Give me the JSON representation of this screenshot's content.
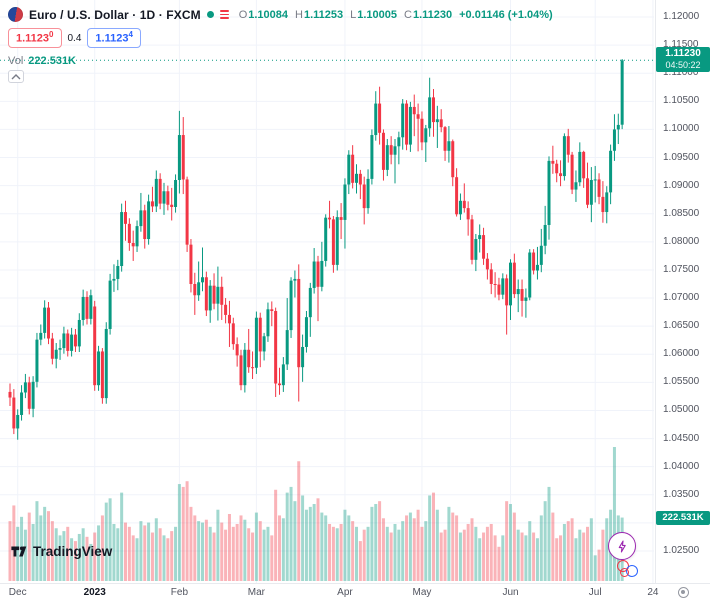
{
  "legend": {
    "title": "Euro / U.S. Dollar · 1D · FXCM",
    "ohlc": [
      {
        "k": "O",
        "v": "1.10084"
      },
      {
        "k": "H",
        "v": "1.11253"
      },
      {
        "k": "L",
        "v": "1.10005"
      },
      {
        "k": "C",
        "v": "1.11230"
      }
    ],
    "change": "+0.01146 (+1.04%)",
    "sell": {
      "price": "1.1123",
      "sup": "0"
    },
    "spread": "0.4",
    "buy": {
      "price": "1.1123",
      "sup": "4"
    },
    "vol_label": "Vol",
    "vol_value": "222.531K"
  },
  "price_axis": {
    "ticks": [
      "1.12000",
      "1.11500",
      "1.11000",
      "1.10500",
      "1.10000",
      "1.09500",
      "1.09000",
      "1.08500",
      "1.08000",
      "1.07500",
      "1.07000",
      "1.06500",
      "1.06000",
      "1.05500",
      "1.05000",
      "1.04500",
      "1.04000",
      "1.03500",
      "1.03000",
      "1.02500"
    ],
    "last_price": "1.11230",
    "countdown": "04:50:22",
    "volume_label": "222.531K"
  },
  "time_axis": {
    "labels": [
      {
        "text": "Dec",
        "index": 2
      },
      {
        "text": "2023",
        "index": 22,
        "major": true
      },
      {
        "text": "Feb",
        "index": 44
      },
      {
        "text": "Mar",
        "index": 64
      },
      {
        "text": "Apr",
        "index": 87
      },
      {
        "text": "May",
        "index": 107
      },
      {
        "text": "Jun",
        "index": 130
      },
      {
        "text": "Jul",
        "index": 152
      },
      {
        "text": "24",
        "index": 167
      }
    ]
  },
  "branding": {
    "logo_text": "TradingView"
  },
  "colors": {
    "up": "#089981",
    "down": "#F23645",
    "vol_up": "rgba(8,153,129,0.38)",
    "vol_down": "rgba(242,54,69,0.38)",
    "grid": "#F0F3FA",
    "buy": "#2962FF",
    "sell": "#F23645",
    "axis_text": "#50535E",
    "muted": "#787B86"
  },
  "chart_data": {
    "type": "candlestick+volume",
    "title": "Euro / U.S. Dollar, 1D, FXCM",
    "symbol": "EURUSD",
    "interval": "1D",
    "x_start": "2022-12-01",
    "x_end": "2023-07-12",
    "ylim": [
      1.025,
      1.12
    ],
    "price_tick_step": 0.005,
    "grid": true,
    "volume_unit": "K",
    "last_bar": {
      "open": 1.10084,
      "high": 1.11253,
      "low": 1.10005,
      "close": 1.1123,
      "volume_k": 222.531
    },
    "candles_format": [
      "open",
      "high",
      "low",
      "close",
      "volume_k"
    ],
    "candles": [
      [
        1.0533,
        1.0548,
        1.0508,
        1.0523,
        210
      ],
      [
        1.0523,
        1.0538,
        1.0458,
        1.0468,
        265
      ],
      [
        1.0468,
        1.0502,
        1.0448,
        1.0492,
        190
      ],
      [
        1.0492,
        1.0545,
        1.0482,
        1.0532,
        225
      ],
      [
        1.0532,
        1.0565,
        1.0522,
        1.055,
        180
      ],
      [
        1.055,
        1.056,
        1.0493,
        1.0503,
        240
      ],
      [
        1.0503,
        1.0561,
        1.0488,
        1.0551,
        200
      ],
      [
        1.0551,
        1.0638,
        1.0541,
        1.0626,
        280
      ],
      [
        1.0626,
        1.0653,
        1.0616,
        1.0638,
        230
      ],
      [
        1.0638,
        1.0696,
        1.0628,
        1.0683,
        260
      ],
      [
        1.0683,
        1.0693,
        1.0618,
        1.0628,
        245
      ],
      [
        1.0628,
        1.0638,
        1.0582,
        1.0592,
        210
      ],
      [
        1.0592,
        1.062,
        1.0575,
        1.0608,
        185
      ],
      [
        1.0608,
        1.0626,
        1.059,
        1.0611,
        160
      ],
      [
        1.0611,
        1.0649,
        1.0601,
        1.0637,
        175
      ],
      [
        1.0637,
        1.0644,
        1.0596,
        1.0606,
        190
      ],
      [
        1.0606,
        1.0647,
        1.0596,
        1.0635,
        150
      ],
      [
        1.0635,
        1.0645,
        1.0604,
        1.0614,
        140
      ],
      [
        1.0614,
        1.0673,
        1.0604,
        1.0661,
        165
      ],
      [
        1.0661,
        1.0715,
        1.0651,
        1.0702,
        185
      ],
      [
        1.0702,
        1.0712,
        1.0653,
        1.0663,
        155
      ],
      [
        1.0663,
        1.0715,
        1.0653,
        1.0705,
        130
      ],
      [
        1.0685,
        1.0695,
        1.0535,
        1.0545,
        170
      ],
      [
        1.0545,
        1.0615,
        1.0535,
        1.0605,
        195
      ],
      [
        1.0605,
        1.0611,
        1.0512,
        1.0522,
        230
      ],
      [
        1.0522,
        1.0657,
        1.0512,
        1.0645,
        275
      ],
      [
        1.0645,
        1.0743,
        1.0635,
        1.0731,
        290
      ],
      [
        1.0731,
        1.076,
        1.0711,
        1.0734,
        200
      ],
      [
        1.0734,
        1.0768,
        1.0714,
        1.0757,
        185
      ],
      [
        1.0757,
        1.0868,
        1.0747,
        1.0853,
        310
      ],
      [
        1.0853,
        1.0873,
        1.0802,
        1.0832,
        205
      ],
      [
        1.0832,
        1.0842,
        1.0784,
        1.0798,
        190
      ],
      [
        1.0798,
        1.082,
        1.0766,
        1.0792,
        160
      ],
      [
        1.0792,
        1.0838,
        1.0782,
        1.0828,
        150
      ],
      [
        1.0828,
        1.0887,
        1.0818,
        1.0856,
        210
      ],
      [
        1.0856,
        1.0866,
        1.0788,
        1.0805,
        195
      ],
      [
        1.0805,
        1.0884,
        1.0795,
        1.0872,
        205
      ],
      [
        1.0872,
        1.0898,
        1.0853,
        1.0863,
        170
      ],
      [
        1.0863,
        1.0927,
        1.0853,
        1.0912,
        220
      ],
      [
        1.0912,
        1.0922,
        1.0858,
        1.0868,
        185
      ],
      [
        1.0868,
        1.0905,
        1.0848,
        1.089,
        160
      ],
      [
        1.089,
        1.09,
        1.0856,
        1.0866,
        150
      ],
      [
        1.0866,
        1.0896,
        1.0838,
        1.0862,
        175
      ],
      [
        1.0862,
        1.092,
        1.0852,
        1.091,
        190
      ],
      [
        1.091,
        1.1033,
        1.0886,
        1.099,
        340
      ],
      [
        1.099,
        1.1022,
        1.0885,
        1.0911,
        330
      ],
      [
        1.0911,
        1.0916,
        1.0782,
        1.0795,
        350
      ],
      [
        1.0795,
        1.0805,
        1.071,
        1.0725,
        260
      ],
      [
        1.0725,
        1.0745,
        1.067,
        1.0705,
        230
      ],
      [
        1.0705,
        1.0765,
        1.0695,
        1.0728,
        210
      ],
      [
        1.0728,
        1.079,
        1.0712,
        1.0737,
        205
      ],
      [
        1.0737,
        1.0747,
        1.0668,
        1.0678,
        215
      ],
      [
        1.0678,
        1.0732,
        1.0656,
        1.0722,
        190
      ],
      [
        1.0722,
        1.0744,
        1.068,
        1.069,
        170
      ],
      [
        1.069,
        1.0756,
        1.066,
        1.072,
        250
      ],
      [
        1.072,
        1.0738,
        1.0661,
        1.0688,
        205
      ],
      [
        1.0688,
        1.07,
        1.0655,
        1.067,
        180
      ],
      [
        1.067,
        1.0695,
        1.0613,
        1.0655,
        235
      ],
      [
        1.0655,
        1.0665,
        1.0608,
        1.0618,
        190
      ],
      [
        1.0618,
        1.063,
        1.0578,
        1.0598,
        200
      ],
      [
        1.0598,
        1.0608,
        1.0536,
        1.0545,
        230
      ],
      [
        1.0545,
        1.062,
        1.0532,
        1.0608,
        215
      ],
      [
        1.0608,
        1.0645,
        1.0567,
        1.0577,
        185
      ],
      [
        1.0577,
        1.0605,
        1.0556,
        1.0576,
        170
      ],
      [
        1.0576,
        1.0676,
        1.0565,
        1.0665,
        240
      ],
      [
        1.0665,
        1.0674,
        1.0577,
        1.0605,
        210
      ],
      [
        1.0605,
        1.0638,
        1.0589,
        1.0632,
        180
      ],
      [
        1.0632,
        1.0692,
        1.0622,
        1.068,
        190
      ],
      [
        1.068,
        1.0694,
        1.065,
        1.0677,
        160
      ],
      [
        1.0677,
        1.0683,
        1.0524,
        1.0548,
        320
      ],
      [
        1.0548,
        1.0576,
        1.0528,
        1.0545,
        230
      ],
      [
        1.0545,
        1.0595,
        1.0533,
        1.0582,
        220
      ],
      [
        1.0582,
        1.07,
        1.0572,
        1.0643,
        310
      ],
      [
        1.0643,
        1.0737,
        1.0629,
        1.0731,
        330
      ],
      [
        1.0731,
        1.0749,
        1.0701,
        1.0734,
        280
      ],
      [
        1.0734,
        1.076,
        1.0516,
        1.0577,
        420
      ],
      [
        1.0577,
        1.0635,
        1.0551,
        1.0613,
        300
      ],
      [
        1.0613,
        1.0677,
        1.0603,
        1.0666,
        250
      ],
      [
        1.0666,
        1.0727,
        1.0631,
        1.0718,
        260
      ],
      [
        1.0718,
        1.0789,
        1.0708,
        1.0765,
        270
      ],
      [
        1.0765,
        1.0775,
        1.0659,
        1.072,
        290
      ],
      [
        1.072,
        1.08,
        1.0712,
        1.0766,
        240
      ],
      [
        1.0766,
        1.0849,
        1.0756,
        1.0843,
        230
      ],
      [
        1.0843,
        1.0873,
        1.0824,
        1.084,
        200
      ],
      [
        1.084,
        1.0846,
        1.0745,
        1.0759,
        190
      ],
      [
        1.0759,
        1.0856,
        1.0749,
        1.0844,
        185
      ],
      [
        1.0844,
        1.0869,
        1.0805,
        1.0839,
        200
      ],
      [
        1.0839,
        1.0913,
        1.0788,
        1.0902,
        250
      ],
      [
        1.0902,
        1.0963,
        1.0885,
        1.0955,
        230
      ],
      [
        1.0955,
        1.0972,
        1.0895,
        1.0905,
        210
      ],
      [
        1.0905,
        1.0938,
        1.0886,
        1.0921,
        190
      ],
      [
        1.0921,
        1.0928,
        1.0876,
        1.0902,
        140
      ],
      [
        1.0902,
        1.0916,
        1.0831,
        1.086,
        180
      ],
      [
        1.086,
        1.0929,
        1.085,
        1.0912,
        190
      ],
      [
        1.0912,
        1.1,
        1.0902,
        1.099,
        260
      ],
      [
        1.099,
        1.1068,
        1.098,
        1.1046,
        270
      ],
      [
        1.1046,
        1.1076,
        1.0973,
        1.0994,
        280
      ],
      [
        1.0994,
        1.1,
        1.0909,
        1.0928,
        220
      ],
      [
        1.0928,
        1.0983,
        1.0917,
        1.0972,
        190
      ],
      [
        1.0972,
        1.0988,
        1.0938,
        1.0955,
        170
      ],
      [
        1.0955,
        1.0983,
        1.0904,
        1.097,
        200
      ],
      [
        1.097,
        1.0996,
        1.0938,
        1.0986,
        180
      ],
      [
        1.0986,
        1.1054,
        1.0964,
        1.1046,
        210
      ],
      [
        1.1046,
        1.1052,
        1.0963,
        1.0973,
        230
      ],
      [
        1.0973,
        1.1049,
        1.096,
        1.104,
        240
      ],
      [
        1.104,
        1.1062,
        1.0988,
        1.1027,
        220
      ],
      [
        1.1027,
        1.1046,
        1.0961,
        1.1019,
        250
      ],
      [
        1.1019,
        1.1032,
        1.0963,
        1.0977,
        190
      ],
      [
        1.0977,
        1.1008,
        1.0942,
        1.1002,
        210
      ],
      [
        1.1002,
        1.1092,
        1.0987,
        1.1057,
        300
      ],
      [
        1.1057,
        1.1072,
        1.0987,
        1.1013,
        310
      ],
      [
        1.1013,
        1.1042,
        1.0967,
        1.1018,
        250
      ],
      [
        1.1018,
        1.1036,
        1.0995,
        1.1004,
        170
      ],
      [
        1.1004,
        1.1006,
        1.0944,
        1.0962,
        180
      ],
      [
        1.0962,
        1.1006,
        1.0941,
        1.0979,
        260
      ],
      [
        1.0979,
        1.0982,
        1.0899,
        1.0915,
        240
      ],
      [
        1.0915,
        1.0931,
        1.0845,
        1.0849,
        230
      ],
      [
        1.0849,
        1.0886,
        1.0839,
        1.0873,
        170
      ],
      [
        1.0873,
        1.0904,
        1.0852,
        1.086,
        180
      ],
      [
        1.086,
        1.0872,
        1.0811,
        1.084,
        200
      ],
      [
        1.084,
        1.0848,
        1.076,
        1.0768,
        220
      ],
      [
        1.0768,
        1.0814,
        1.0748,
        1.0805,
        190
      ],
      [
        1.0805,
        1.0831,
        1.0781,
        1.0812,
        150
      ],
      [
        1.0812,
        1.0825,
        1.0759,
        1.077,
        170
      ],
      [
        1.077,
        1.078,
        1.0733,
        1.0751,
        190
      ],
      [
        1.0751,
        1.0762,
        1.0707,
        1.0725,
        200
      ],
      [
        1.0725,
        1.0746,
        1.0701,
        1.0724,
        160
      ],
      [
        1.0724,
        1.0736,
        1.0696,
        1.0706,
        120
      ],
      [
        1.0706,
        1.0744,
        1.0698,
        1.0735,
        160
      ],
      [
        1.0735,
        1.0742,
        1.0635,
        1.0687,
        280
      ],
      [
        1.0687,
        1.0769,
        1.0661,
        1.0763,
        270
      ],
      [
        1.0763,
        1.0779,
        1.07,
        1.0707,
        240
      ],
      [
        1.0707,
        1.0733,
        1.0675,
        1.0716,
        180
      ],
      [
        1.0716,
        1.0733,
        1.0667,
        1.0695,
        170
      ],
      [
        1.0695,
        1.0717,
        1.0665,
        1.0701,
        160
      ],
      [
        1.0701,
        1.0787,
        1.0696,
        1.0781,
        210
      ],
      [
        1.0781,
        1.0787,
        1.0742,
        1.0749,
        170
      ],
      [
        1.0749,
        1.0791,
        1.0733,
        1.0759,
        150
      ],
      [
        1.0759,
        1.0823,
        1.0746,
        1.0793,
        230
      ],
      [
        1.0793,
        1.0864,
        1.0778,
        1.083,
        280
      ],
      [
        1.083,
        1.0952,
        1.0804,
        1.0944,
        330
      ],
      [
        1.0944,
        1.0971,
        1.0921,
        1.0939,
        240
      ],
      [
        1.0939,
        1.0946,
        1.0906,
        1.0922,
        150
      ],
      [
        1.0922,
        1.0945,
        1.0899,
        1.0917,
        160
      ],
      [
        1.0917,
        1.0993,
        1.0909,
        1.0988,
        200
      ],
      [
        1.0988,
        1.1001,
        1.0941,
        1.0955,
        210
      ],
      [
        1.0955,
        1.096,
        1.0885,
        1.0893,
        220
      ],
      [
        1.0893,
        1.0927,
        1.0871,
        1.0906,
        150
      ],
      [
        1.0906,
        1.0977,
        1.0899,
        1.096,
        180
      ],
      [
        1.096,
        1.0962,
        1.0896,
        1.0913,
        170
      ],
      [
        1.0913,
        1.0941,
        1.086,
        1.0866,
        190
      ],
      [
        1.0866,
        1.0933,
        1.0835,
        1.091,
        220
      ],
      [
        1.091,
        1.0935,
        1.087,
        1.0911,
        90
      ],
      [
        1.0911,
        1.0922,
        1.0867,
        1.088,
        110
      ],
      [
        1.088,
        1.0908,
        1.0834,
        1.0853,
        180
      ],
      [
        1.0853,
        1.0899,
        1.0833,
        1.0888,
        220
      ],
      [
        1.0888,
        1.0973,
        1.0867,
        1.0962,
        250
      ],
      [
        1.0962,
        1.1027,
        1.0944,
        1.1,
        470
      ],
      [
        1.1,
        1.1028,
        1.0974,
        1.1008,
        230
      ],
      [
        1.10084,
        1.11253,
        1.10005,
        1.1123,
        222.531
      ]
    ]
  }
}
